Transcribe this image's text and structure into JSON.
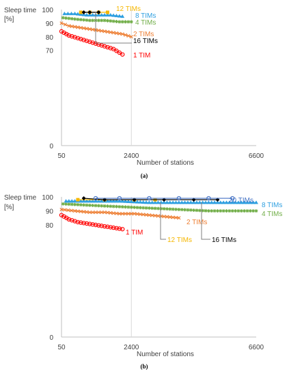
{
  "chart_data": [
    {
      "type": "line",
      "panel_label": "(a)",
      "ylabel_line1": "Sleep time",
      "ylabel_line2": "[%]",
      "xlabel": "Number of stations",
      "xlim": [
        50,
        6600
      ],
      "ylim": [
        0,
        100
      ],
      "x_ticks": [
        "50",
        "2400",
        "6600"
      ],
      "y_ticks": [
        "0",
        "70",
        "80",
        "90",
        "100"
      ],
      "series": [
        {
          "name": "1 TIM",
          "color": "#ff0000",
          "marker": "circle",
          "x": [
            50,
            300,
            600,
            900,
            1200,
            1500,
            1800,
            2100
          ],
          "y": [
            84,
            81,
            79,
            77,
            75,
            73,
            71,
            67
          ]
        },
        {
          "name": "2 TIMs",
          "color": "#ed7d31",
          "marker": "x",
          "x": [
            50,
            300,
            600,
            900,
            1200,
            1500,
            1800,
            2100,
            2400
          ],
          "y": [
            90,
            88,
            87,
            86,
            85,
            84,
            83,
            82,
            80
          ]
        },
        {
          "name": "4 TIMs",
          "color": "#70ad47",
          "marker": "star",
          "x": [
            100,
            500,
            1000,
            1500,
            2000,
            2400
          ],
          "y": [
            94,
            93,
            92,
            92,
            91,
            91
          ]
        },
        {
          "name": "8 TIMs",
          "color": "#2e9fe0",
          "marker": "triangle",
          "x": [
            150,
            500,
            900,
            1300,
            1700,
            2100
          ],
          "y": [
            97,
            97,
            96,
            96,
            96,
            95
          ]
        },
        {
          "name": "12 TIMs",
          "color": "#f5b700",
          "marker": "square",
          "x": [
            700,
            1000,
            1300,
            1600
          ],
          "y": [
            98,
            98,
            98,
            98
          ]
        },
        {
          "name": "16 TIMs",
          "color": "#000000",
          "marker": "diamond",
          "x": [
            800,
            1000,
            1300
          ],
          "y": [
            98,
            98,
            98
          ]
        }
      ]
    },
    {
      "type": "line",
      "panel_label": "(b)",
      "ylabel_line1": "Sleep time",
      "ylabel_line2": "[%]",
      "xlabel": "Number of stations",
      "xlim": [
        50,
        6600
      ],
      "ylim": [
        0,
        100
      ],
      "x_ticks": [
        "50",
        "2400",
        "6600"
      ],
      "y_ticks": [
        "0",
        "80",
        "90",
        "100"
      ],
      "series": [
        {
          "name": "1 TIM",
          "color": "#ff0000",
          "marker": "circle",
          "x": [
            50,
            300,
            600,
            900,
            1200,
            1500,
            1800,
            2100
          ],
          "y": [
            87,
            84,
            82,
            81,
            80,
            79,
            78,
            77
          ]
        },
        {
          "name": "2 TIMs",
          "color": "#ed7d31",
          "marker": "x",
          "x": [
            50,
            500,
            1000,
            1500,
            2000,
            2500,
            3000,
            3500,
            4000
          ],
          "y": [
            91,
            90,
            89,
            89,
            88,
            88,
            87,
            86,
            85
          ]
        },
        {
          "name": "4 TIMs",
          "color": "#70ad47",
          "marker": "star",
          "x": [
            100,
            1000,
            2000,
            3000,
            4000,
            5000,
            6000,
            6600
          ],
          "y": [
            95,
            94,
            93,
            92,
            91,
            90,
            90,
            90
          ]
        },
        {
          "name": "8 TIMs",
          "color": "#2e9fe0",
          "marker": "triangle",
          "x": [
            200,
            1000,
            2000,
            3000,
            4000,
            5000,
            6000,
            6600
          ],
          "y": [
            97,
            97,
            97,
            96,
            96,
            96,
            96,
            96
          ]
        },
        {
          "name": "12 TIMs",
          "color": "#f5b700",
          "marker": "square",
          "x": [
            600,
            1500,
            2500,
            3200
          ],
          "y": [
            98,
            98,
            98,
            98
          ]
        },
        {
          "name": "16 TIMs",
          "color": "#000000",
          "marker": "diamond",
          "x": [
            800,
            1500,
            2500,
            3500,
            4500,
            5300
          ],
          "y": [
            99,
            98,
            98,
            98,
            98,
            98
          ]
        },
        {
          "name": "20 TIMs",
          "color": "#4472c4",
          "marker": "circle",
          "x": [
            1200,
            2000,
            3000,
            4000,
            5000,
            5800
          ],
          "y": [
            99,
            99,
            99,
            99,
            99,
            99
          ]
        }
      ]
    }
  ]
}
